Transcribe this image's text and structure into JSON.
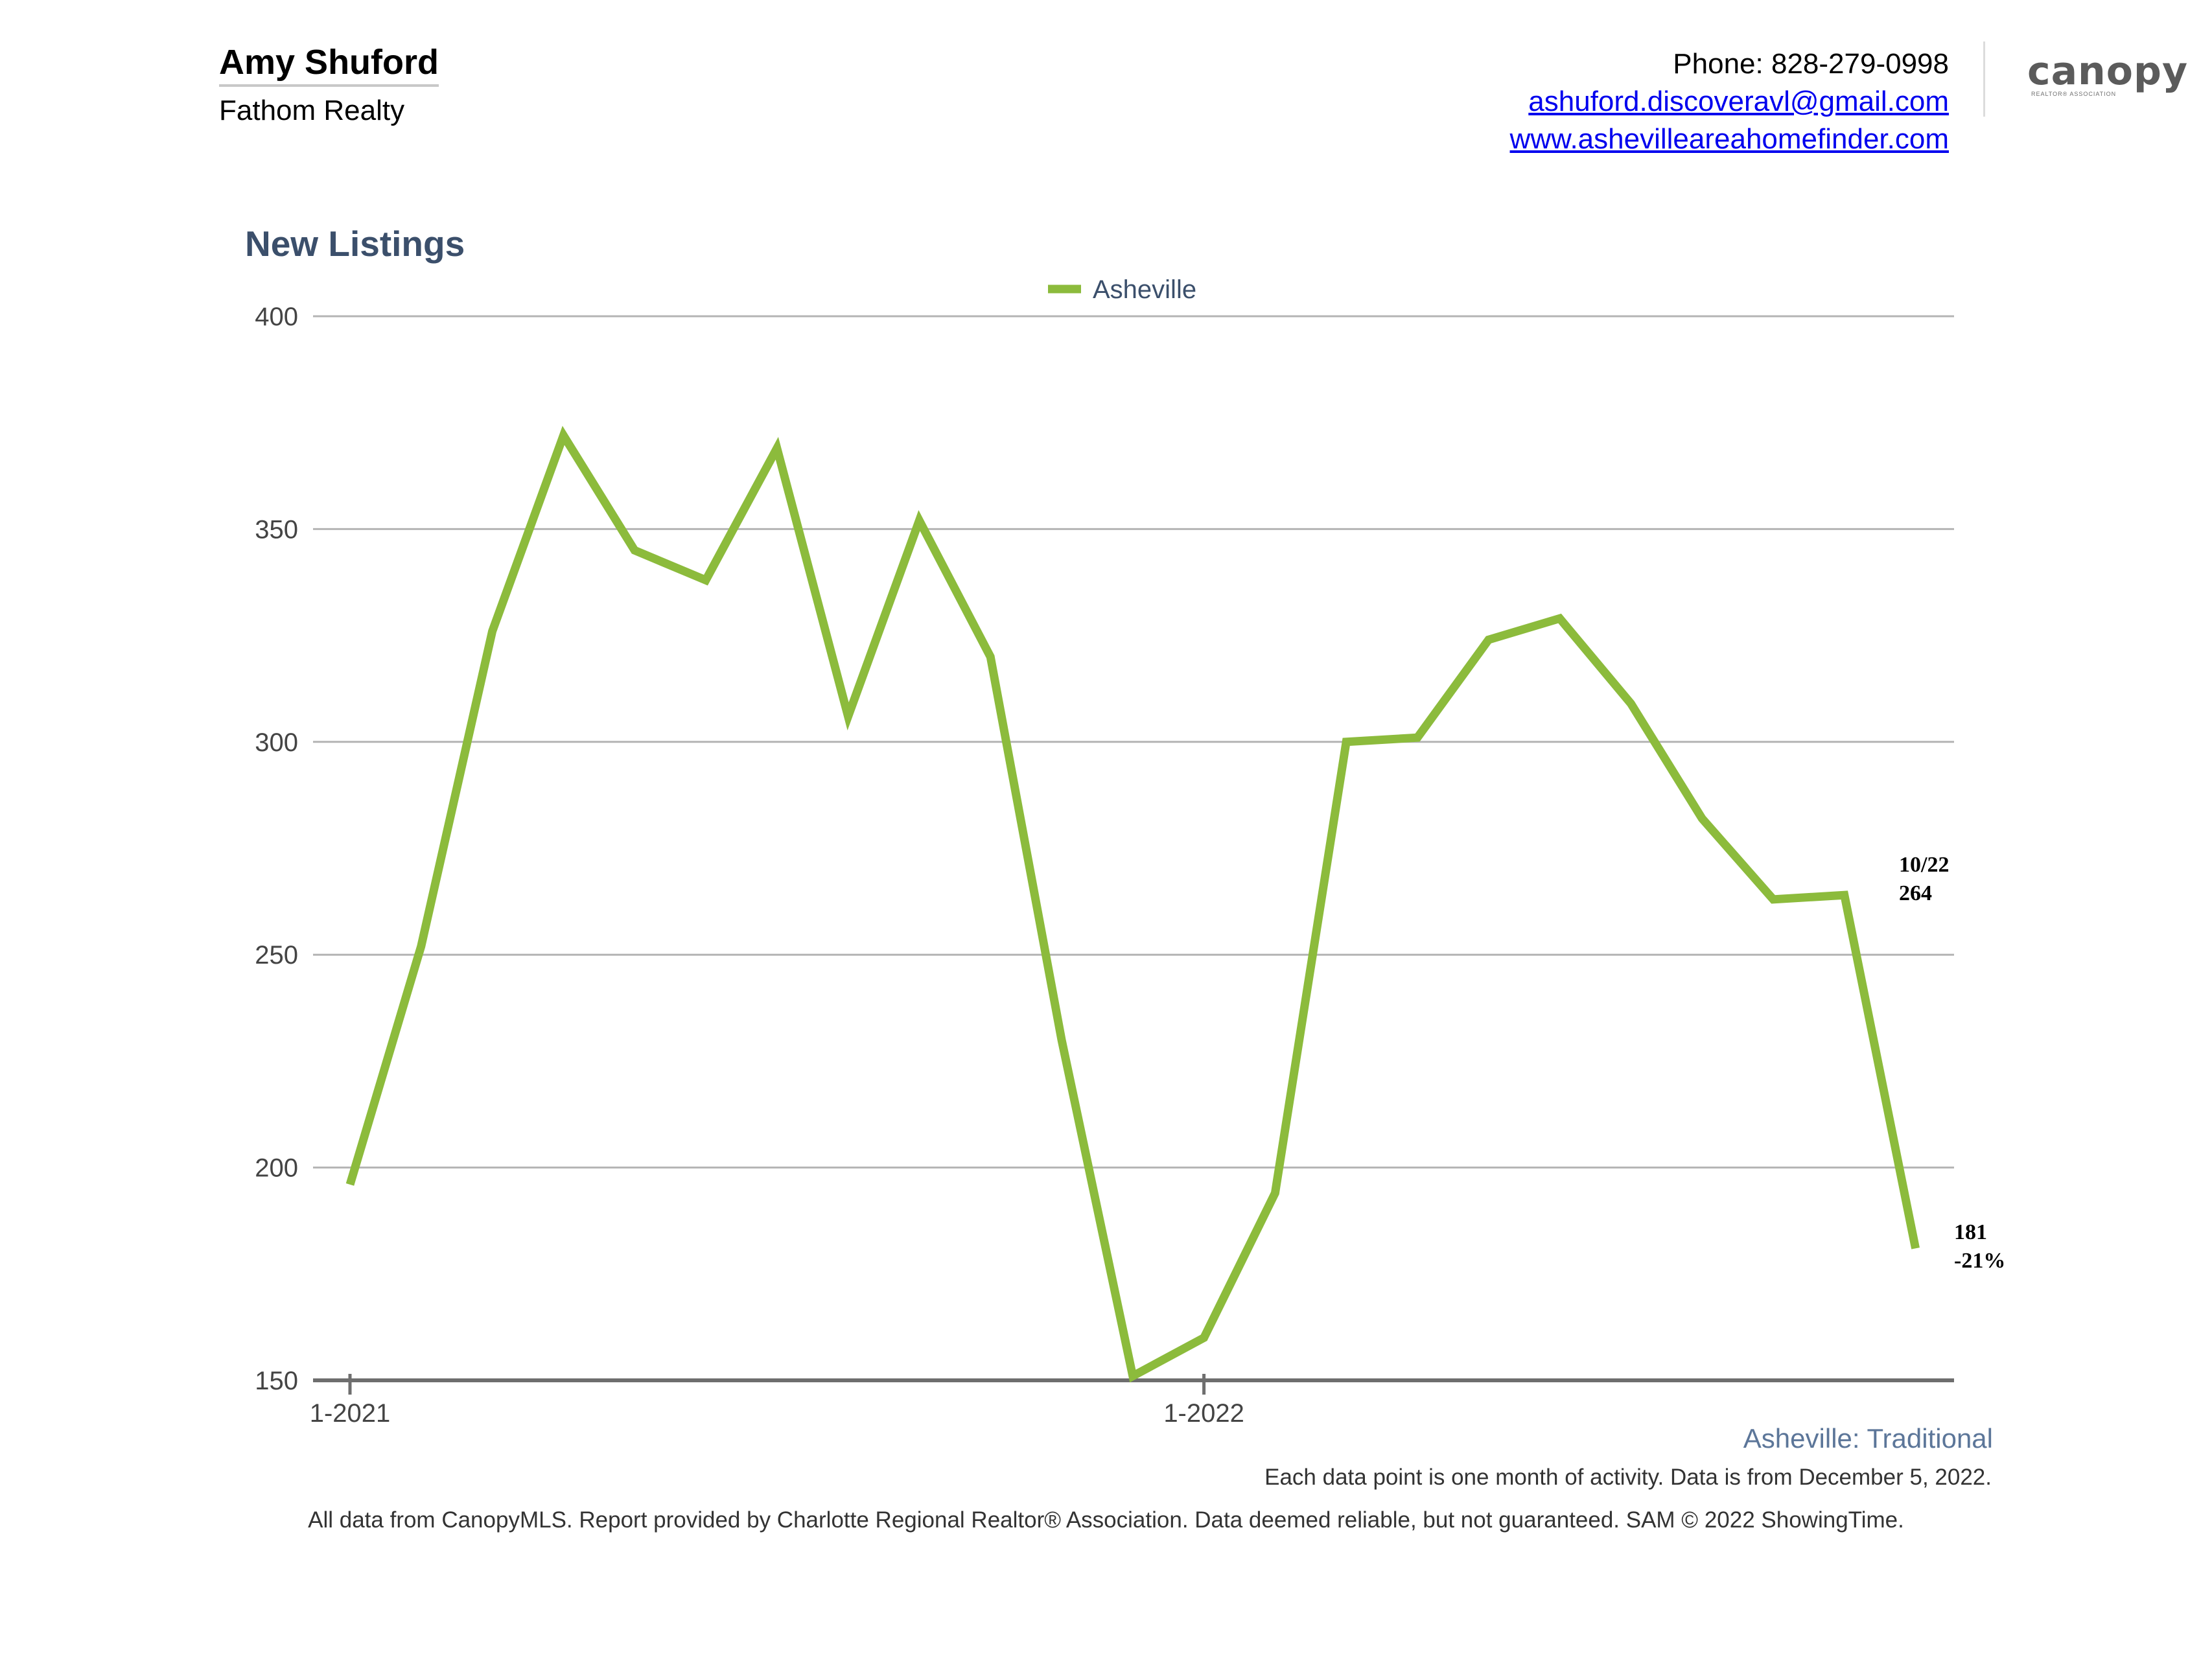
{
  "agent": {
    "name": "Amy Shuford",
    "company": "Fathom Realty"
  },
  "contact": {
    "phone": "Phone: 828-279-0998",
    "email": "ashuford.discoveravl@gmail.com",
    "website": "www.ashevilleareahomefinder.com"
  },
  "logo": {
    "text": "canopy",
    "subtext": "REALTOR® ASSOCIATION"
  },
  "colors": {
    "series": "#8cbb3c",
    "title": "#3b4f6b",
    "grid": "#b4b4b4",
    "axis": "#6e6e6e",
    "market_label": "#5c7699"
  },
  "chart_data": {
    "type": "line",
    "title": "New Listings",
    "legend_position": "top-center",
    "grid": true,
    "ylim": [
      150,
      400
    ],
    "y_ticks": [
      150,
      200,
      250,
      300,
      350,
      400
    ],
    "x_tick_labels": [
      {
        "label": "1-2021",
        "index": 0
      },
      {
        "label": "1-2022",
        "index": 12
      }
    ],
    "x": [
      "1-2021",
      "2-2021",
      "3-2021",
      "4-2021",
      "5-2021",
      "6-2021",
      "7-2021",
      "8-2021",
      "9-2021",
      "10-2021",
      "11-2021",
      "12-2021",
      "1-2022",
      "2-2022",
      "3-2022",
      "4-2022",
      "5-2022",
      "6-2022",
      "7-2022",
      "8-2022",
      "9-2022",
      "10-2022",
      "11-2022"
    ],
    "series": [
      {
        "name": "Asheville",
        "values": [
          196,
          252,
          326,
          372,
          345,
          338,
          369,
          306,
          352,
          320,
          230,
          151,
          160,
          194,
          300,
          301,
          324,
          329,
          309,
          282,
          263,
          264,
          181
        ]
      }
    ],
    "annotations": [
      {
        "lines": [
          "10/22",
          "264"
        ],
        "index": 21
      },
      {
        "lines": [
          "181",
          "-21%"
        ],
        "index": 22
      }
    ]
  },
  "footer": {
    "market_label": "Asheville: Traditional",
    "data_note": "Each data point is one month of activity. Data is from December 5, 2022.",
    "disclaimer": "All data from CanopyMLS. Report provided by Charlotte Regional Realtor® Association. Data deemed reliable, but not guaranteed. SAM © 2022 ShowingTime."
  }
}
